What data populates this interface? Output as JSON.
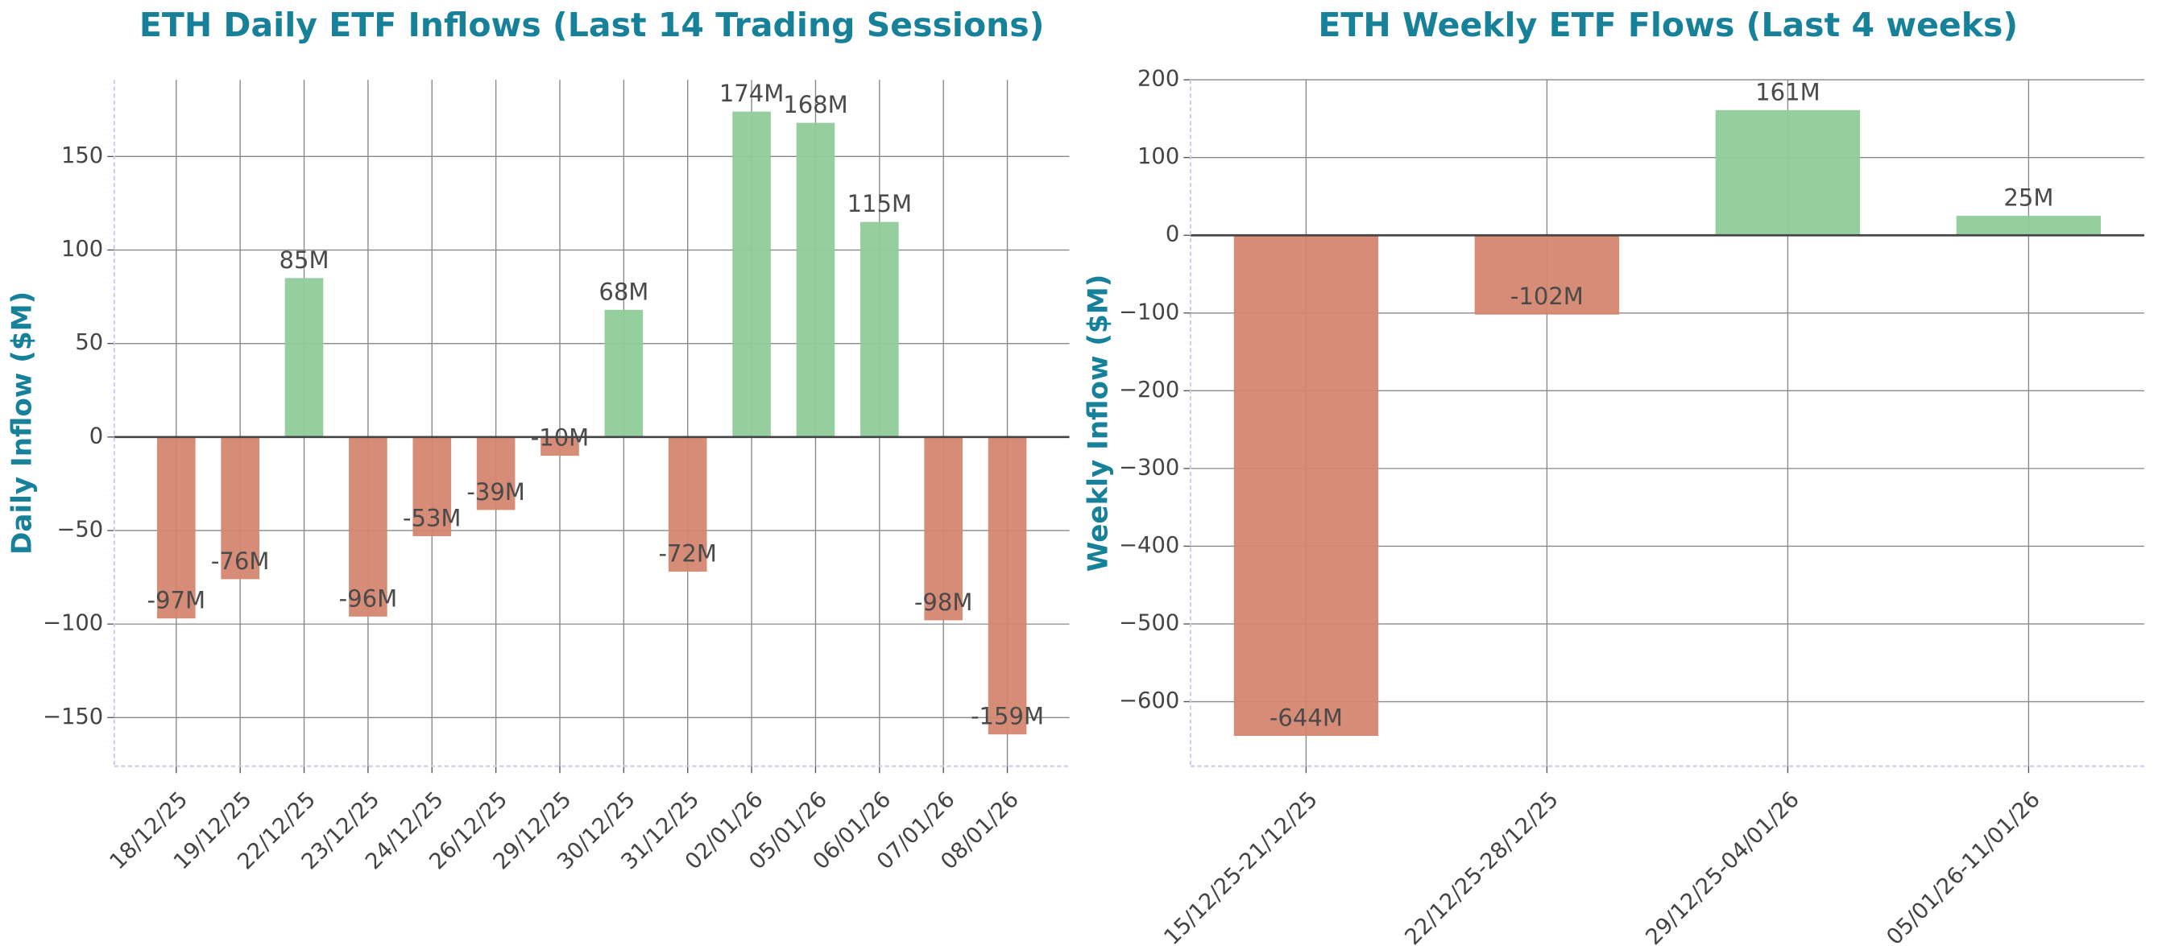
{
  "chart_data": [
    {
      "type": "bar",
      "title": "ETH Daily ETF Inflows (Last 14 Trading Sessions)",
      "y_label": "Daily Inflow ($M)",
      "categories": [
        "18/12/25",
        "19/12/25",
        "22/12/25",
        "23/12/25",
        "24/12/25",
        "26/12/25",
        "29/12/25",
        "30/12/25",
        "31/12/25",
        "02/01/26",
        "05/01/26",
        "06/01/26",
        "07/01/26",
        "08/01/26"
      ],
      "values": [
        -97,
        -76,
        85,
        -96,
        -53,
        -39,
        -10,
        68,
        -72,
        174,
        168,
        115,
        -98,
        -159
      ],
      "value_labels": [
        "-97M",
        "-76M",
        "85M",
        "-96M",
        "-53M",
        "-39M",
        "-10M",
        "68M",
        "-72M",
        "174M",
        "168M",
        "115M",
        "-98M",
        "-159M"
      ],
      "colors": [
        "#d4866f",
        "#d4866f",
        "#8fcc9a",
        "#d4866f",
        "#d4866f",
        "#d4866f",
        "#d4866f",
        "#8fcc9a",
        "#d4866f",
        "#8fcc9a",
        "#8fcc9a",
        "#8fcc9a",
        "#d4866f",
        "#d4866f"
      ],
      "ylim": [
        -176,
        191
      ],
      "yticks": [
        {
          "value": -150,
          "label": "−150"
        },
        {
          "value": -100,
          "label": "−100"
        },
        {
          "value": -50,
          "label": "−50"
        },
        0,
        50,
        100,
        150
      ],
      "grid": true
    },
    {
      "type": "bar",
      "title": "ETH Weekly ETF Flows (Last 4 weeks)",
      "y_label": "Weekly Inflow ($M)",
      "categories": [
        "15/12/25-21/12/25",
        "22/12/25-28/12/25",
        "29/12/25-04/01/26",
        "05/01/26-11/01/26"
      ],
      "values": [
        -644,
        -102,
        161,
        25
      ],
      "value_labels": [
        "-644M",
        "-102M",
        "161M",
        "25M"
      ],
      "colors": [
        "#d4866f",
        "#d4866f",
        "#8fcc9a",
        "#8fcc9a"
      ],
      "ylim": [
        -683,
        200
      ],
      "yticks": [
        {
          "value": -600,
          "label": "−600"
        },
        {
          "value": -500,
          "label": "−500"
        },
        {
          "value": -400,
          "label": "−400"
        },
        {
          "value": -300,
          "label": "−300"
        },
        {
          "value": -200,
          "label": "−200"
        },
        {
          "value": -100,
          "label": "−100"
        },
        0,
        100,
        200
      ],
      "grid": true
    }
  ]
}
